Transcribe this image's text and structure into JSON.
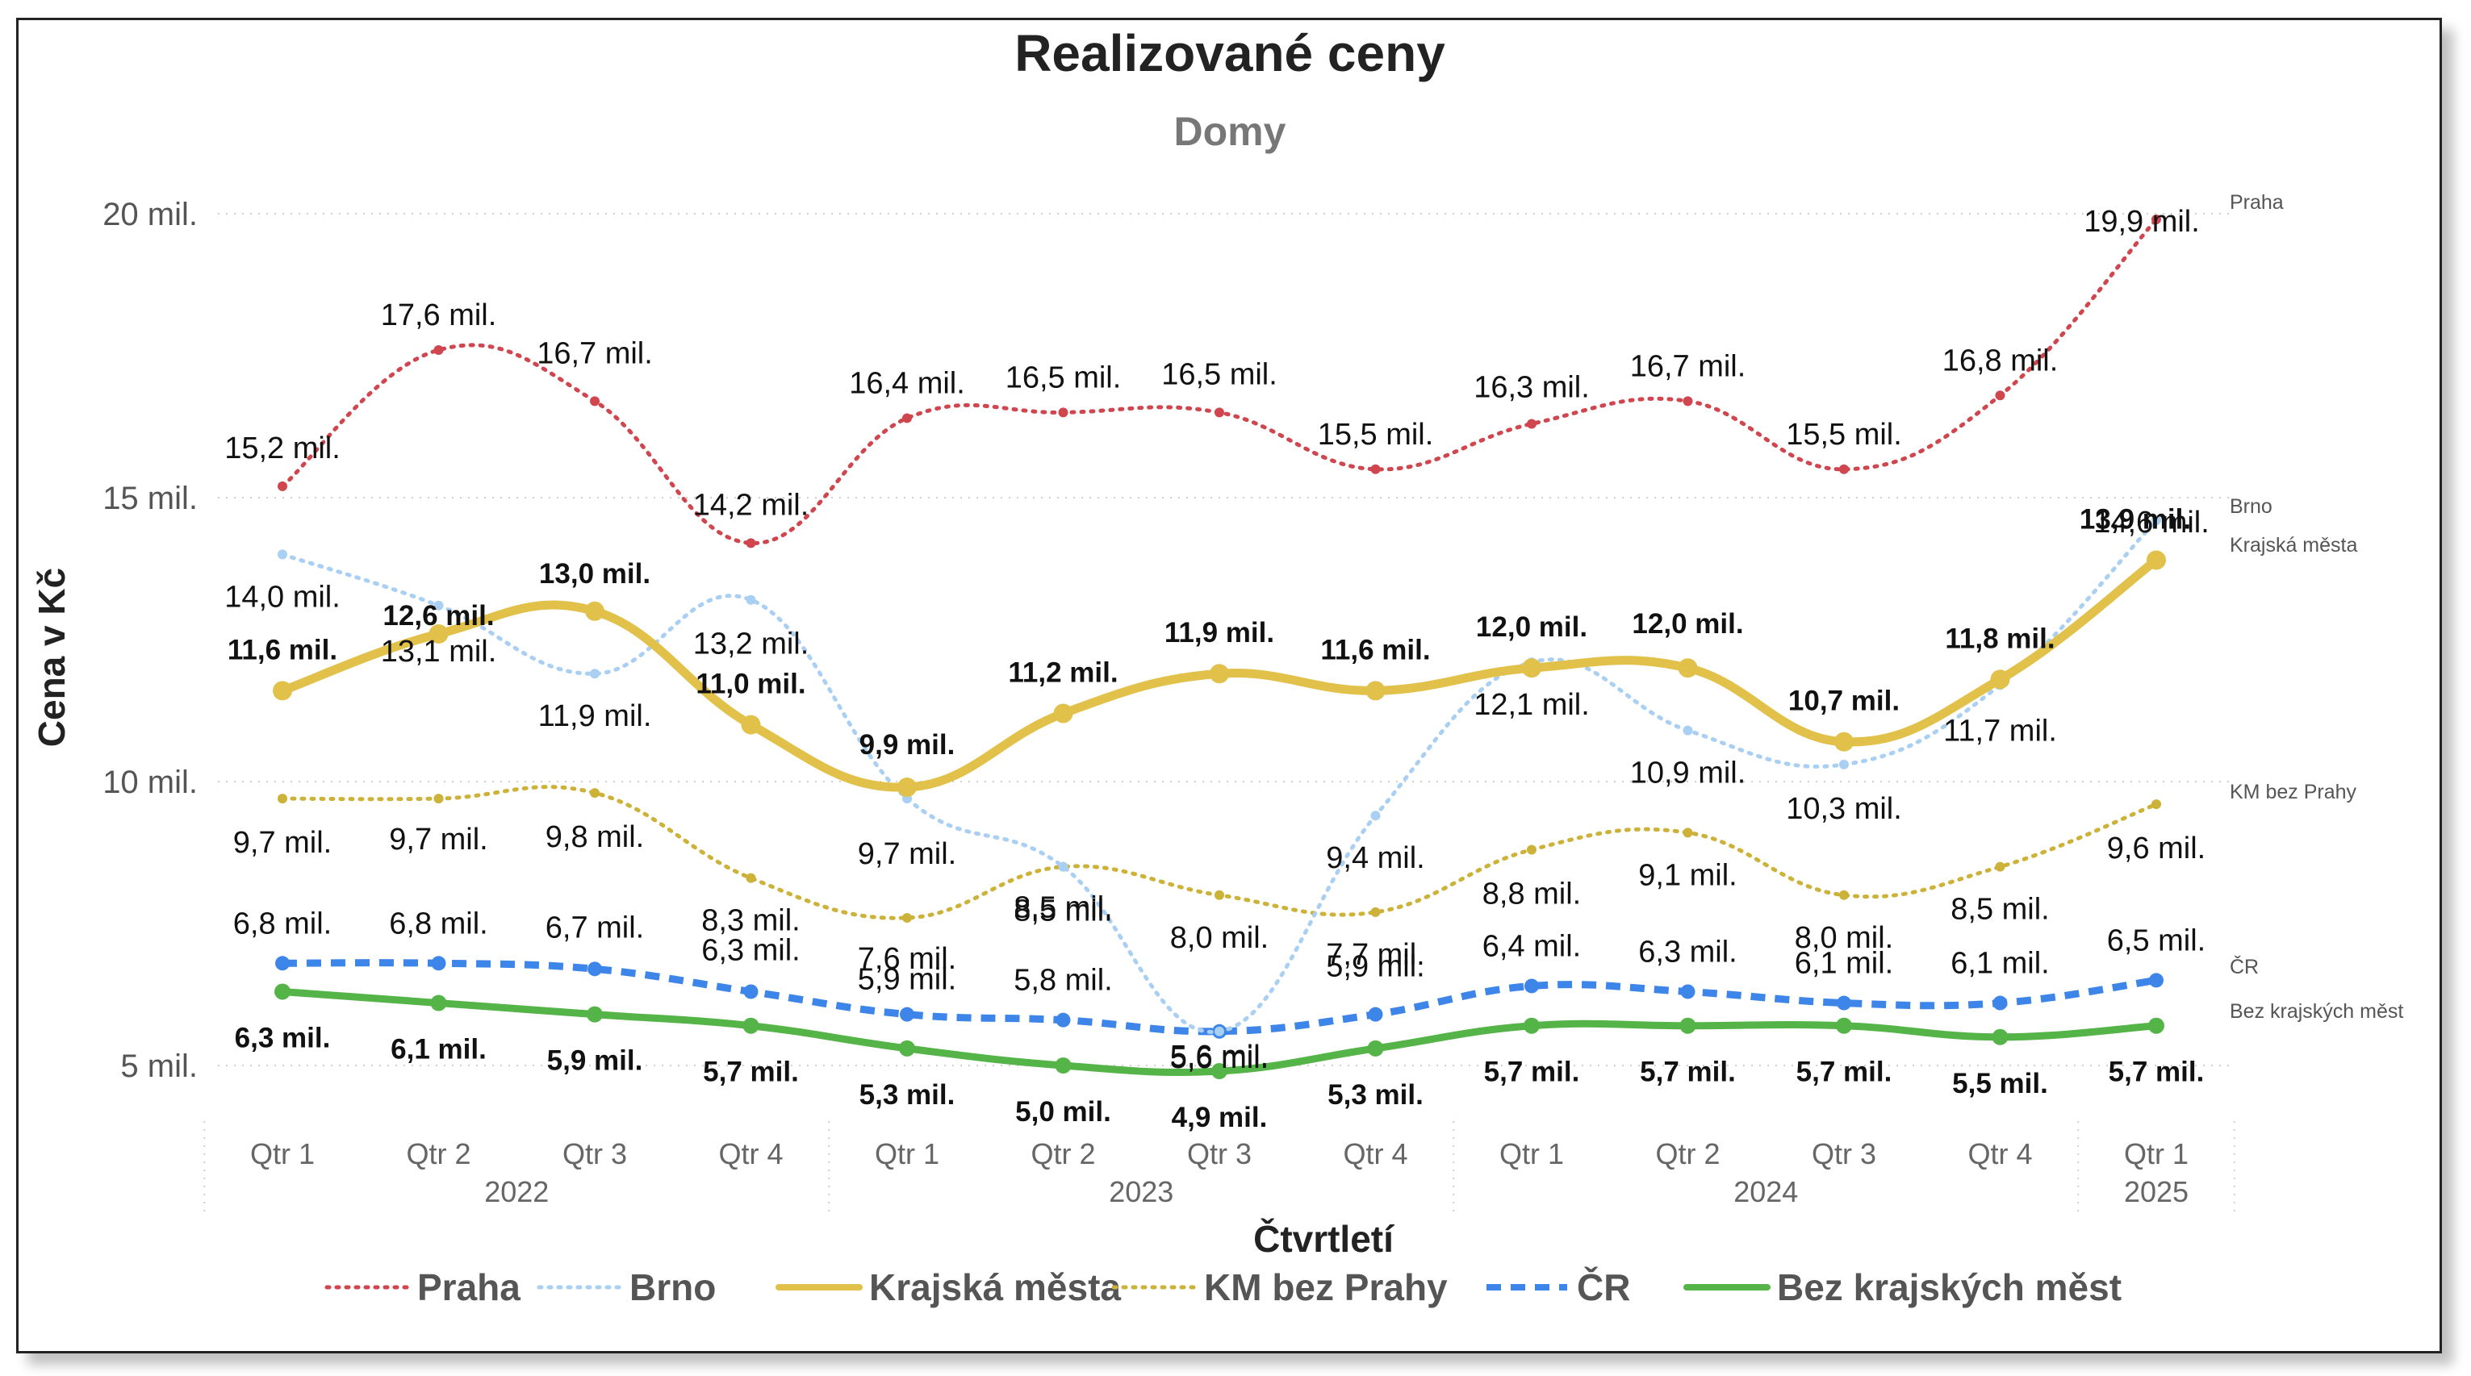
{
  "chart_data": {
    "type": "line",
    "title": "Realizované ceny",
    "subtitle": "Domy",
    "ylabel": "Cena v Kč",
    "xlabel": "Čtvrtletí",
    "ylim": [
      5,
      20
    ],
    "yticks": [
      {
        "value": 5,
        "label": "5 mil."
      },
      {
        "value": 10,
        "label": "10 mil."
      },
      {
        "value": 15,
        "label": "15 mil."
      },
      {
        "value": 20,
        "label": "20 mil."
      }
    ],
    "categories": [
      "Qtr 1",
      "Qtr 2",
      "Qtr 3",
      "Qtr 4",
      "Qtr 1",
      "Qtr 2",
      "Qtr 3",
      "Qtr 4",
      "Qtr 1",
      "Qtr 2",
      "Qtr 3",
      "Qtr 4",
      "Qtr 1"
    ],
    "years": [
      {
        "label": "2022",
        "start": 0,
        "end": 3
      },
      {
        "label": "2023",
        "start": 4,
        "end": 7
      },
      {
        "label": "2024",
        "start": 8,
        "end": 11
      },
      {
        "label": "2025",
        "start": 12,
        "end": 12
      }
    ],
    "grid": true,
    "legend_position": "bottom",
    "series": [
      {
        "name": "Praha",
        "color": "#D0464F",
        "style": "dotted",
        "bold_labels": false,
        "values": [
          15.2,
          17.6,
          16.7,
          14.2,
          16.4,
          16.5,
          16.5,
          15.5,
          16.3,
          16.7,
          15.5,
          16.8,
          19.9
        ],
        "labels": [
          "15,2 mil.",
          "17,6 mil.",
          "16,7 mil.",
          "14,2 mil.",
          "16,4 mil.",
          "16,5 mil.",
          "16,5 mil.",
          "15,5 mil.",
          "16,3 mil.",
          "16,7 mil.",
          "15,5 mil.",
          "16,8 mil.",
          "19,9 mil."
        ]
      },
      {
        "name": "Brno",
        "color": "#A9CFF3",
        "style": "dotted",
        "bold_labels": false,
        "values": [
          14.0,
          13.1,
          11.9,
          13.2,
          9.7,
          8.5,
          5.6,
          9.4,
          12.1,
          10.9,
          10.3,
          11.7,
          14.6
        ],
        "labels": [
          "14,0 mil.",
          "13,1 mil.",
          "11,9 mil.",
          "13,2 mil.",
          "9,7 mil.",
          "8,5 mil.",
          "5,6 mil.",
          "9,4 mil.",
          "12,1 mil.",
          "10,9 mil.",
          "10,3 mil.",
          "11,7 mil.",
          "14,6 mil."
        ]
      },
      {
        "name": "Krajská města",
        "color": "#E1C14A",
        "style": "solid",
        "bold_labels": true,
        "values": [
          11.6,
          12.6,
          13.0,
          11.0,
          9.9,
          11.2,
          11.9,
          11.6,
          12.0,
          12.0,
          10.7,
          11.8,
          13.9
        ],
        "labels": [
          "11,6 mil.",
          "12,6 mil.",
          "13,0 mil.",
          "11,0 mil.",
          "9,9 mil.",
          "11,2 mil.",
          "11,9 mil.",
          "11,6 mil.",
          "12,0 mil.",
          "12,0 mil.",
          "10,7 mil.",
          "11,8 mil.",
          "13,9 mil."
        ]
      },
      {
        "name": "KM bez Prahy",
        "color": "#CDB23A",
        "style": "dotted",
        "bold_labels": false,
        "values": [
          9.7,
          9.7,
          9.8,
          8.3,
          7.6,
          8.5,
          8.0,
          7.7,
          8.8,
          9.1,
          8.0,
          8.5,
          9.6
        ],
        "labels": [
          "9,7 mil.",
          "9,7 mil.",
          "9,8 mil.",
          "8,3 mil.",
          "7,6 mil.",
          "8,5 mil.",
          "8,0 mil.",
          "7,7 mil.",
          "8,8 mil.",
          "9,1 mil.",
          "8,0 mil.",
          "8,5 mil.",
          "9,6 mil."
        ]
      },
      {
        "name": "ČR",
        "color": "#3D85E8",
        "style": "dashed",
        "bold_labels": false,
        "values": [
          6.8,
          6.8,
          6.7,
          6.3,
          5.9,
          5.8,
          5.6,
          5.9,
          6.4,
          6.3,
          6.1,
          6.1,
          6.5
        ],
        "labels": [
          "6,8 mil.",
          "6,8 mil.",
          "6,7 mil.",
          "6,3 mil.",
          "5,9 mil.",
          "5,8 mil.",
          "5,6 mil.",
          "5,9 mil.",
          "6,4 mil.",
          "6,3 mil.",
          "6,1 mil.",
          "6,1 mil.",
          "6,5 mil."
        ]
      },
      {
        "name": "Bez krajských měst",
        "color": "#55B447",
        "style": "solid",
        "bold_labels": true,
        "values": [
          6.3,
          6.1,
          5.9,
          5.7,
          5.3,
          5.0,
          4.9,
          5.3,
          5.7,
          5.7,
          5.7,
          5.5,
          5.7
        ],
        "labels": [
          "6,3 mil.",
          "6,1 mil.",
          "5,9 mil.",
          "5,7 mil.",
          "5,3 mil.",
          "5,0 mil.",
          "4,9 mil.",
          "5,3 mil.",
          "5,7 mil.",
          "5,7 mil.",
          "5,7 mil.",
          "5,5 mil.",
          "5,7 mil."
        ]
      }
    ],
    "end_labels": [
      "Praha",
      "Brno",
      "Krajská města",
      "KM bez Prahy",
      "ČR",
      "Bez krajských měst"
    ]
  }
}
